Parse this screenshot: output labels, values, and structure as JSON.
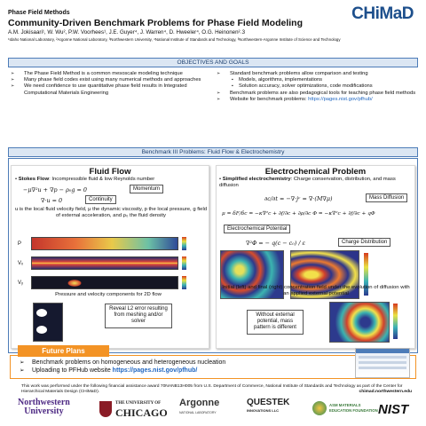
{
  "header": {
    "kicker": "Phase Field Methods",
    "title": "Community-Driven Benchmark Problems for Phase Field Modeling",
    "authors": "A.M. Jokisaari¹, W. Wu², P.W. Voorhees¹, J.E. Guyer⁴, J. Warren⁴, D.  Hweeler⁴, O.G. Heinonen²˒3",
    "affiliations": "¹Idaho National Laboratory, ²Argonne National Laboratory, ³Northwestern University, ⁴National Institute of Standards and Technology, ³Northwestern-Argonne Institute of Science and Technology",
    "logo": "CHiMaD"
  },
  "objectives": {
    "title": "OBJECTIVES AND GOALS",
    "left": [
      "The Phase Field Method is a common mesoscale modeling technique",
      "Many phase field codes exist using many numerical methods and approaches",
      "We need confidence to use quantitative phase field results in Integrated Computational Materials Engineering"
    ],
    "right_intro": "Standard benchmark problems allow comparison and testing",
    "right_sub": [
      "Models, algorithms, implementations",
      "Solution accuracy, solver optimizations, code modifications"
    ],
    "right_more": "Benchmark problems are also pedagogical tools for teaching phase field methods",
    "website_label": "Website for benchmark problems: ",
    "website_url": "https://pages.nist.gov/pfhub/"
  },
  "benchmark": {
    "title": "Benchmark III Problems: Fluid Flow & Electrochemistry",
    "fluid": {
      "heading": "Fluid Flow",
      "stokes_label": "Stokes Flow",
      "stokes_text": ": Incompressible fluid & low Reynolds number",
      "eq_momentum": "−μ∇²u + ∇p − ρ₀g = 0",
      "tag_momentum": "Momentum",
      "eq_continuity": "∇·u = 0",
      "tag_continuity": "Continuity",
      "description": "u is the local fluid velocity field, μ the dynamic viscosity, p the local pressure, g field of external acceleration, and ρ₀ the fluid density",
      "strip_labels": [
        "P",
        "Vₓ",
        "Vᵧ"
      ],
      "caption": "Pressure and velocity components for 2D flow",
      "error_note": "Reveal L2 error resulting from meshing and/or solver"
    },
    "electro": {
      "heading": "Electrochemical Problem",
      "intro_bold": "Simplified electrochemistry",
      "intro_rest": ": Charge conservation, distribution, and mass diffusion",
      "eq_diffusion": "∂c/∂t = −∇·jᶜ = ∇·(M∇μ)",
      "tag_diffusion": "Mass Diffusion",
      "eq_potential": "μ = δF/δc = −κ∇²c + ∂f/∂c + ∂ρ/∂c Φ = −κ∇²c + ∂f/∂c + qΦ",
      "tag_potential": "Electrochemical Potential",
      "eq_charge": "∇²Φ = − q(c − c₀) / ε",
      "tag_charge": "Charge Distribution",
      "caption": "Initial (left) and final (right) concentration field under the evolution of diffusion with an applied external potential",
      "note": "Without external potential, mass pattern is different"
    }
  },
  "future": {
    "title": "Future Plans",
    "items": [
      "Benchmark problems on homogeneous and heterogeneous nucleation",
      "Uploading to PFHub website "
    ],
    "link": "https://pages.nist.gov/pfhub/"
  },
  "ack": {
    "text": "This work was performed under the following financial assistance award 70NANB13H005 from U.S. Department of Commerce, National Institute of Standards and Technology as part of the Center for Hierarchical Materials Design (CHiMaD).",
    "url": "chimad.northwestern.edu"
  },
  "sponsors": {
    "northwestern_1": "Northwestern",
    "northwestern_2": "University",
    "chicago_1": "THE UNIVERSITY OF",
    "chicago_2": "CHICAGO",
    "argonne_1": "Argonne",
    "argonne_2": "NATIONAL LABORATORY",
    "questek_1": "QUESTEK",
    "questek_2": "INNOVATIONS LLC",
    "asm_1": "ASM MATERIALS",
    "asm_2": "EDUCATION FOUNDATION",
    "nist": "NIST"
  },
  "colors": {
    "accent_blue": "#4d7cb8",
    "band_fill": "#dbe6f3",
    "future_orange": "#f39325",
    "logo_blue": "#1d4f8c",
    "logo_red": "#9b1c2e",
    "link": "#1f66c1"
  }
}
